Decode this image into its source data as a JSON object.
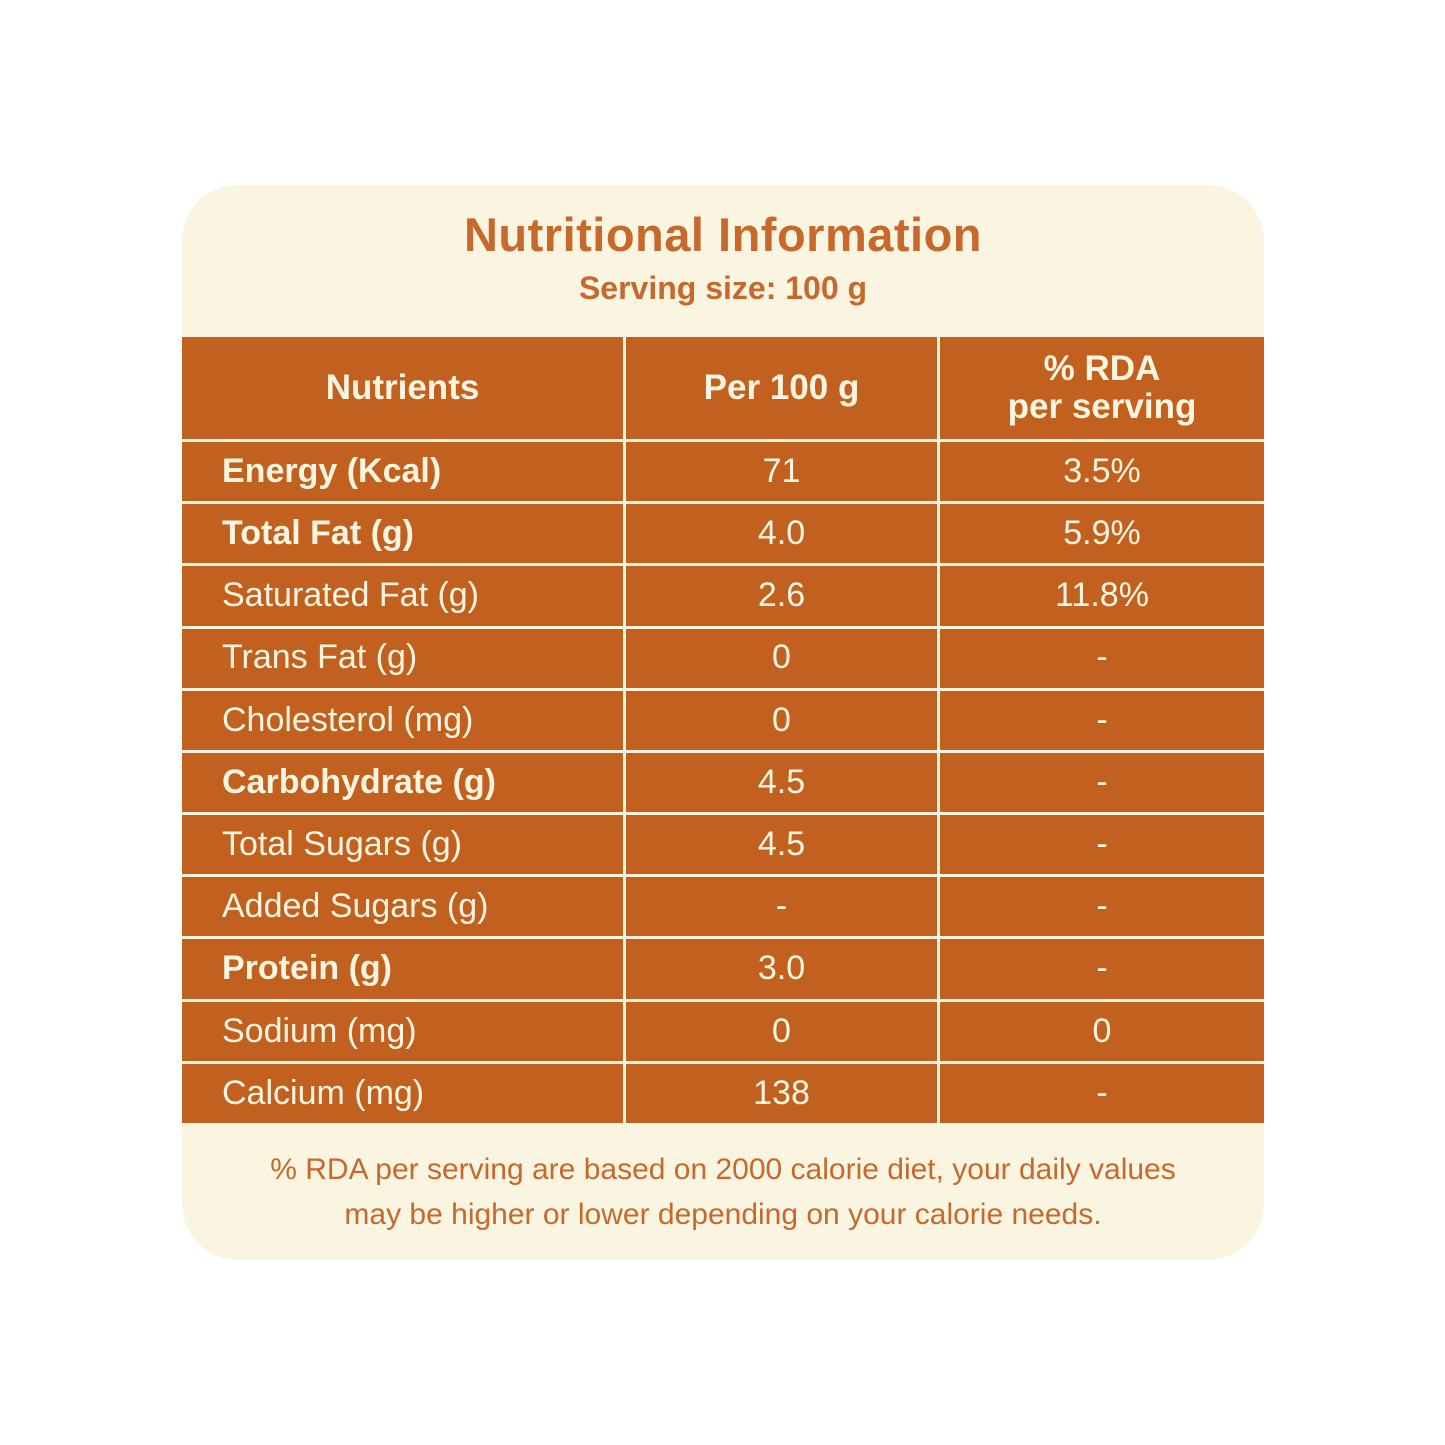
{
  "colors": {
    "accent_orange_text": "#C7682C",
    "table_orange": "#C2611F",
    "card_cream": "#FAF5E1",
    "page_background": "#FFFFFF",
    "table_text_cream": "#FAF5E1"
  },
  "header": {
    "title": "Nutritional Information",
    "serving_size": "Serving size: 100 g"
  },
  "table": {
    "columns": [
      "Nutrients",
      "Per 100 g",
      "% RDA\nper serving"
    ],
    "rows": [
      {
        "nutrient": "Energy (Kcal)",
        "per_100g": "71",
        "rda": "3.5%"
      },
      {
        "nutrient": "Total Fat (g)",
        "per_100g": "4.0",
        "rda": "5.9%"
      },
      {
        "nutrient": "Saturated Fat (g)",
        "per_100g": "2.6",
        "rda": "11.8%"
      },
      {
        "nutrient": "Trans Fat (g)",
        "per_100g": "0",
        "rda": "-"
      },
      {
        "nutrient": "Cholesterol (mg)",
        "per_100g": "0",
        "rda": "-"
      },
      {
        "nutrient": "Carbohydrate (g)",
        "per_100g": "4.5",
        "rda": "-"
      },
      {
        "nutrient": "Total Sugars (g)",
        "per_100g": "4.5",
        "rda": "-"
      },
      {
        "nutrient": "Added Sugars (g)",
        "per_100g": "-",
        "rda": "-"
      },
      {
        "nutrient": "Protein (g)",
        "per_100g": "3.0",
        "rda": "-"
      },
      {
        "nutrient": "Sodium (mg)",
        "per_100g": "0",
        "rda": "0"
      },
      {
        "nutrient": "Calcium (mg)",
        "per_100g": "138",
        "rda": "-"
      }
    ]
  },
  "footer": {
    "line1": "% RDA per serving are based on 2000 calorie  diet,  your daily values",
    "line2": "may be higher or lower depending on your calorie needs."
  }
}
